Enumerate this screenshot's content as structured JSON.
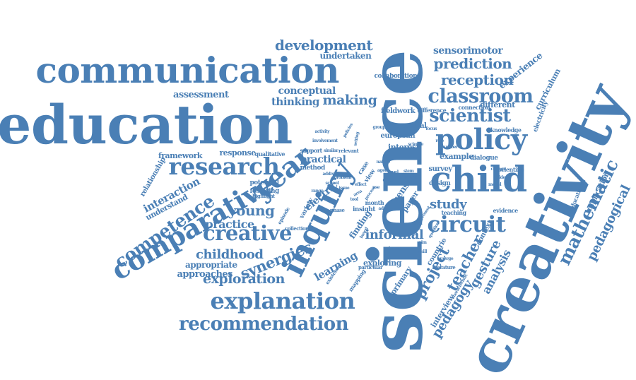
{
  "palette": {
    "word": "#4a7fb5",
    "background": "#ffffff"
  },
  "words": [
    "science",
    "creativity",
    "education",
    "communication",
    "inquiry",
    "year",
    "child",
    "policy",
    "comparative",
    "research",
    "classroom",
    "scientist",
    "creative",
    "competence",
    "explanation",
    "recommendation",
    "circuit",
    "mathematic",
    "development",
    "prediction",
    "reception",
    "synergies",
    "exploration",
    "young",
    "childhood",
    "practice",
    "teacher",
    "project",
    "pedagogy",
    "gesture",
    "analysis",
    "pedagogical",
    "informal",
    "study",
    "making",
    "thinking",
    "conceptual",
    "interaction",
    "sensorimotor",
    "experience",
    "curriculum",
    "assessment",
    "undertaken",
    "appropriate",
    "approaches",
    "learning",
    "exploring",
    "interview",
    "implication",
    "electricity",
    "interest",
    "european",
    "practical",
    "response",
    "framework",
    "relationship",
    "understand",
    "fieldwork",
    "finding",
    "primary",
    "countrie",
    "example",
    "dialogue",
    "survey",
    "design",
    "different",
    "connection",
    "collaboration",
    "potential",
    "fostering",
    "method",
    "support",
    "qualitative",
    "electric",
    "sense",
    "paper",
    "context",
    "evidence",
    "variety",
    "insight",
    "month",
    "shape",
    "gestural",
    "knowledge",
    "educational",
    "difference",
    "relevant",
    "collection",
    "literature",
    "particular",
    "teaching",
    "mapping",
    "existence",
    "scientific",
    "episode",
    "highlight",
    "case",
    "view",
    "phase",
    "level",
    "data",
    "stem",
    "based",
    "tool",
    "range",
    "aged",
    "nature",
    "similar",
    "policies",
    "setting",
    "question",
    "number",
    "emerge",
    "process",
    "effect",
    "adult",
    "area",
    "issue",
    "use",
    "characteristic",
    "involvement",
    "address",
    "problem",
    "present",
    "pupil",
    "outcome",
    "aim",
    "focus",
    "role",
    "group",
    "school",
    "science",
    "activity",
    "skill",
    "change",
    "idea",
    "model"
  ]
}
